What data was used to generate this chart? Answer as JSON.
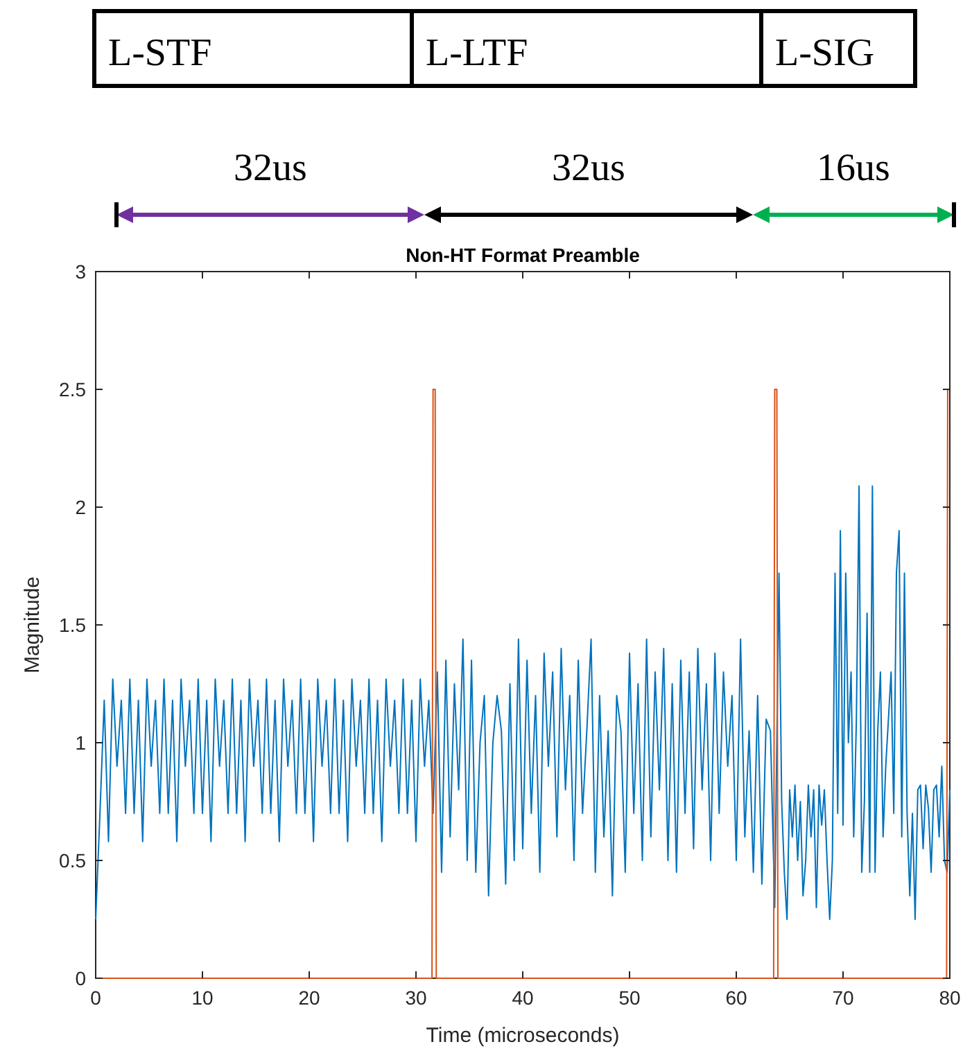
{
  "chart_data": {
    "type": "line",
    "title": "Non-HT Format Preamble",
    "xlabel": "Time (microseconds)",
    "ylabel": "Magnitude",
    "annotations": [
      "L-STF",
      "L-LTF",
      "L-SIG",
      "32us",
      "32us",
      "16us"
    ],
    "xlim": [
      0,
      80
    ],
    "xticks": [
      0,
      10,
      20,
      30,
      40,
      50,
      60,
      70,
      80
    ],
    "ylim": [
      0,
      3
    ],
    "yticks": [
      0,
      0.5,
      1,
      1.5,
      2,
      2.5,
      3
    ],
    "grid": false,
    "line_style": "solid",
    "marker": "none",
    "series": [
      {
        "color": "#0072bd",
        "x": [
          0,
          0.4,
          0.8,
          1.2,
          1.6,
          2,
          2.4,
          2.8,
          3.2,
          3.6,
          4,
          4.4,
          4.8,
          5.2,
          5.6,
          6,
          6.4,
          6.8,
          7.2,
          7.6,
          8,
          8.4,
          8.8,
          9.2,
          9.6,
          10,
          10.4,
          10.8,
          11.2,
          11.6,
          12,
          12.4,
          12.8,
          13.2,
          13.6,
          14,
          14.4,
          14.8,
          15.2,
          15.6,
          16,
          16.4,
          16.8,
          17.2,
          17.6,
          18,
          18.4,
          18.8,
          19.2,
          19.6,
          20,
          20.4,
          20.8,
          21.2,
          21.6,
          22,
          22.4,
          22.8,
          23.2,
          23.6,
          24,
          24.4,
          24.8,
          25.2,
          25.6,
          26,
          26.4,
          26.8,
          27.2,
          27.6,
          28,
          28.4,
          28.8,
          29.2,
          29.6,
          30,
          30.4,
          30.8,
          31.2,
          31.6,
          32,
          32.4,
          32.8,
          33.2,
          33.6,
          34,
          34.4,
          34.8,
          35.2,
          35.6,
          36,
          36.4,
          36.8,
          37.2,
          37.6,
          38,
          38.4,
          38.8,
          39.2,
          39.6,
          40,
          40.4,
          40.8,
          41.2,
          41.6,
          42,
          42.4,
          42.8,
          43.2,
          43.6,
          44,
          44.4,
          44.8,
          45.2,
          45.6,
          46,
          46.4,
          46.8,
          47.2,
          47.6,
          48,
          48.4,
          48.8,
          49.2,
          49.6,
          50,
          50.4,
          50.8,
          51.2,
          51.6,
          52,
          52.4,
          52.8,
          53.2,
          53.6,
          54,
          54.4,
          54.8,
          55.2,
          55.6,
          56,
          56.4,
          56.8,
          57.2,
          57.6,
          58,
          58.4,
          58.8,
          59.2,
          59.6,
          60,
          60.4,
          60.8,
          61.2,
          61.6,
          62,
          62.4,
          62.8,
          63.2,
          63.6,
          64,
          64.25,
          64.5,
          64.75,
          65,
          65.25,
          65.5,
          65.75,
          66,
          66.25,
          66.5,
          66.75,
          67,
          67.25,
          67.5,
          67.75,
          68,
          68.25,
          68.5,
          68.75,
          69,
          69.25,
          69.5,
          69.75,
          70,
          70.25,
          70.5,
          70.75,
          71,
          71.25,
          71.5,
          71.75,
          72,
          72.25,
          72.5,
          72.75,
          73,
          73.25,
          73.5,
          73.75,
          74,
          74.25,
          74.5,
          74.75,
          75,
          75.25,
          75.5,
          75.75,
          76,
          76.25,
          76.5,
          76.75,
          77,
          77.25,
          77.5,
          77.75,
          78,
          78.25,
          78.5,
          78.75,
          79,
          79.25,
          79.5,
          79.75,
          80
        ],
        "values": [
          0.25,
          0.7,
          1.18,
          0.58,
          1.27,
          0.9,
          1.18,
          0.7,
          1.27,
          0.7,
          1.18,
          0.58,
          1.27,
          0.9,
          1.18,
          0.7,
          1.27,
          0.7,
          1.18,
          0.58,
          1.27,
          0.9,
          1.18,
          0.7,
          1.27,
          0.7,
          1.18,
          0.58,
          1.27,
          0.9,
          1.18,
          0.7,
          1.27,
          0.7,
          1.18,
          0.58,
          1.27,
          0.9,
          1.18,
          0.7,
          1.27,
          0.7,
          1.18,
          0.58,
          1.27,
          0.9,
          1.18,
          0.7,
          1.27,
          0.7,
          1.18,
          0.58,
          1.27,
          0.9,
          1.18,
          0.7,
          1.27,
          0.7,
          1.18,
          0.58,
          1.27,
          0.9,
          1.18,
          0.7,
          1.27,
          0.7,
          1.18,
          0.58,
          1.27,
          0.9,
          1.18,
          0.7,
          1.27,
          0.7,
          1.18,
          0.58,
          1.27,
          0.9,
          1.18,
          0.7,
          1.3,
          0.45,
          1.35,
          0.6,
          1.25,
          0.8,
          1.44,
          0.5,
          1.35,
          0.45,
          1.0,
          1.2,
          0.35,
          1.0,
          1.2,
          1.05,
          0.4,
          1.25,
          0.5,
          1.44,
          0.55,
          1.35,
          0.7,
          1.2,
          0.45,
          1.38,
          0.9,
          1.3,
          0.6,
          1.4,
          0.8,
          1.2,
          0.5,
          1.35,
          0.7,
          1.05,
          1.44,
          0.45,
          1.2,
          0.6,
          1.05,
          0.35,
          1.2,
          1.05,
          0.45,
          1.38,
          0.7,
          1.25,
          0.5,
          1.44,
          0.6,
          1.3,
          0.8,
          1.4,
          0.5,
          1.25,
          0.45,
          1.35,
          0.7,
          1.3,
          0.55,
          1.4,
          0.8,
          1.25,
          0.5,
          1.38,
          0.7,
          1.3,
          0.9,
          1.2,
          0.5,
          1.44,
          0.6,
          1.05,
          0.45,
          1.2,
          0.4,
          1.1,
          1.05,
          0.3,
          1.72,
          0.75,
          0.45,
          0.25,
          0.8,
          0.6,
          0.82,
          0.5,
          0.75,
          0.35,
          0.5,
          0.82,
          0.6,
          0.8,
          0.3,
          0.82,
          0.65,
          0.8,
          0.5,
          0.25,
          0.5,
          1.72,
          0.7,
          1.9,
          0.65,
          1.72,
          1.0,
          1.3,
          0.6,
          1.1,
          2.09,
          0.45,
          0.75,
          1.55,
          0.45,
          2.09,
          0.45,
          1.05,
          1.3,
          0.6,
          0.9,
          1.1,
          1.3,
          0.7,
          1.72,
          1.9,
          0.6,
          1.72,
          0.7,
          0.35,
          0.7,
          0.25,
          0.8,
          0.82,
          0.55,
          0.82,
          0.72,
          0.45,
          0.8,
          0.82,
          0.6,
          0.9,
          0.5,
          0.45,
          0.8
        ]
      },
      {
        "color": "#d95319",
        "x": [
          0,
          31.5,
          31.6,
          31.8,
          31.9,
          63.5,
          63.6,
          63.8,
          63.9,
          79.7,
          79.8,
          80
        ],
        "values": [
          0,
          0,
          2.5,
          2.5,
          0,
          0,
          2.5,
          2.5,
          0,
          0,
          2.5,
          2.5
        ]
      }
    ]
  }
}
